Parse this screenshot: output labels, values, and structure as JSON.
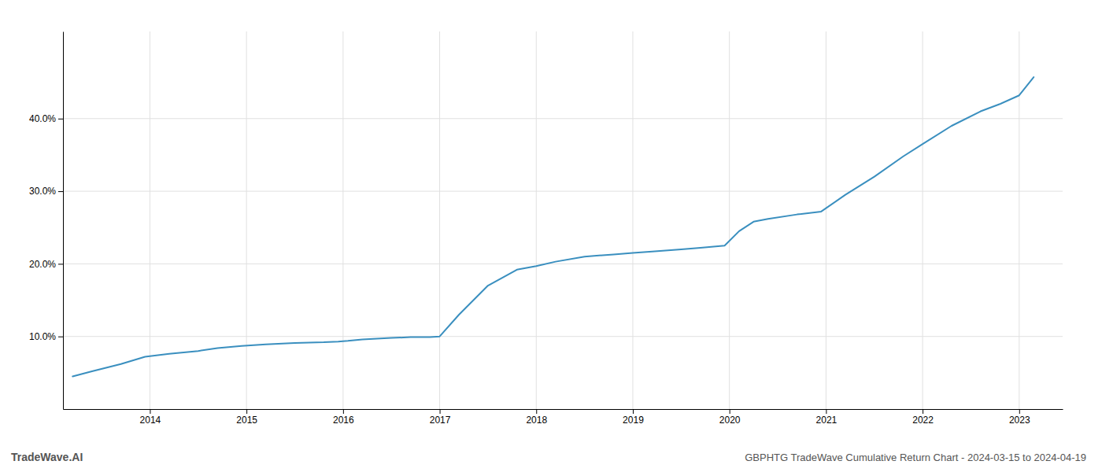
{
  "chart_data": {
    "type": "line",
    "title": "GBPHTG TradeWave Cumulative Return Chart - 2024-03-15 to 2024-04-19",
    "annotations": [
      "TradeWave.AI"
    ],
    "color": "#3a8fbf",
    "x": [
      2013.2,
      2013.4,
      2013.7,
      2013.95,
      2014.2,
      2014.5,
      2014.7,
      2014.95,
      2015.2,
      2015.5,
      2015.8,
      2015.95,
      2016.05,
      2016.2,
      2016.5,
      2016.7,
      2016.9,
      2017.0,
      2017.2,
      2017.5,
      2017.8,
      2018.0,
      2018.2,
      2018.5,
      2018.8,
      2019.0,
      2019.2,
      2019.5,
      2019.7,
      2019.95,
      2020.1,
      2020.25,
      2020.4,
      2020.7,
      2020.95,
      2021.2,
      2021.5,
      2021.8,
      2022.0,
      2022.3,
      2022.6,
      2022.8,
      2023.0,
      2023.15
    ],
    "values": [
      0.045,
      0.052,
      0.062,
      0.072,
      0.076,
      0.08,
      0.084,
      0.087,
      0.089,
      0.091,
      0.092,
      0.093,
      0.094,
      0.096,
      0.098,
      0.099,
      0.099,
      0.1,
      0.13,
      0.17,
      0.192,
      0.197,
      0.203,
      0.21,
      0.213,
      0.215,
      0.217,
      0.22,
      0.222,
      0.225,
      0.245,
      0.258,
      0.262,
      0.268,
      0.272,
      0.295,
      0.32,
      0.348,
      0.365,
      0.39,
      0.41,
      0.42,
      0.432,
      0.457
    ],
    "xlim": [
      2013.1,
      2023.45
    ],
    "xticks": [
      2014,
      2015,
      2016,
      2017,
      2018,
      2019,
      2020,
      2021,
      2022,
      2023
    ],
    "ylim": [
      0.0,
      0.52
    ],
    "yticks": [
      {
        "value": 0.1,
        "label": "10.0%"
      },
      {
        "value": 0.2,
        "label": "20.0%"
      },
      {
        "value": 0.3,
        "label": "30.0%"
      },
      {
        "value": 0.4,
        "label": "40.0%"
      }
    ],
    "grid": true
  }
}
